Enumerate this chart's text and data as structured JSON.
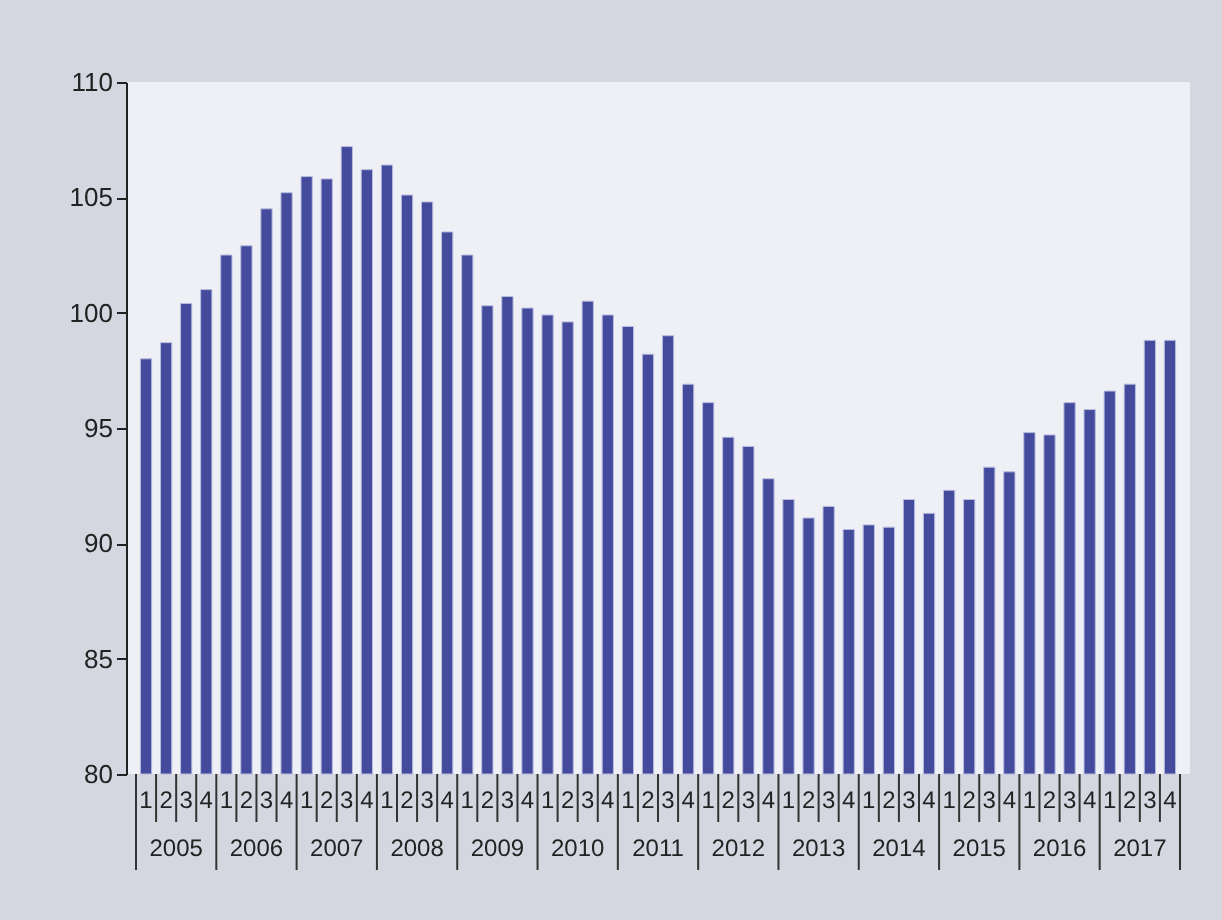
{
  "chart_data": {
    "type": "bar",
    "categories": [
      "1",
      "2",
      "3",
      "4",
      "1",
      "2",
      "3",
      "4",
      "1",
      "2",
      "3",
      "4",
      "1",
      "2",
      "3",
      "4",
      "1",
      "2",
      "3",
      "4",
      "1",
      "2",
      "3",
      "4",
      "1",
      "2",
      "3",
      "4",
      "1",
      "2",
      "3",
      "4",
      "1",
      "2",
      "3",
      "4",
      "1",
      "2",
      "3",
      "4",
      "1",
      "2",
      "3",
      "4",
      "1",
      "2",
      "3",
      "4",
      "1",
      "2",
      "3",
      "4"
    ],
    "values": [
      98.0,
      98.7,
      100.4,
      101.0,
      102.5,
      102.9,
      104.5,
      105.2,
      105.9,
      105.8,
      107.2,
      106.2,
      106.4,
      105.1,
      104.8,
      103.5,
      102.5,
      100.3,
      100.7,
      100.2,
      99.9,
      99.6,
      100.5,
      99.9,
      99.4,
      98.2,
      99.0,
      96.9,
      96.1,
      94.6,
      94.2,
      92.8,
      91.9,
      91.1,
      91.6,
      90.6,
      90.8,
      90.7,
      91.9,
      91.3,
      92.3,
      91.9,
      93.3,
      93.1,
      94.8,
      94.7,
      96.1,
      95.8,
      96.6,
      96.9,
      98.8,
      98.8
    ],
    "color": "#444b9c",
    "ylim": [
      80,
      110
    ],
    "yticks": [
      80,
      85,
      90,
      95,
      100,
      105,
      110
    ],
    "annotations": [
      "2005",
      "2006",
      "2007",
      "2008",
      "2009",
      "2010",
      "2011",
      "2012",
      "2013",
      "2014",
      "2015",
      "2016",
      "2017"
    ],
    "grid": false
  }
}
